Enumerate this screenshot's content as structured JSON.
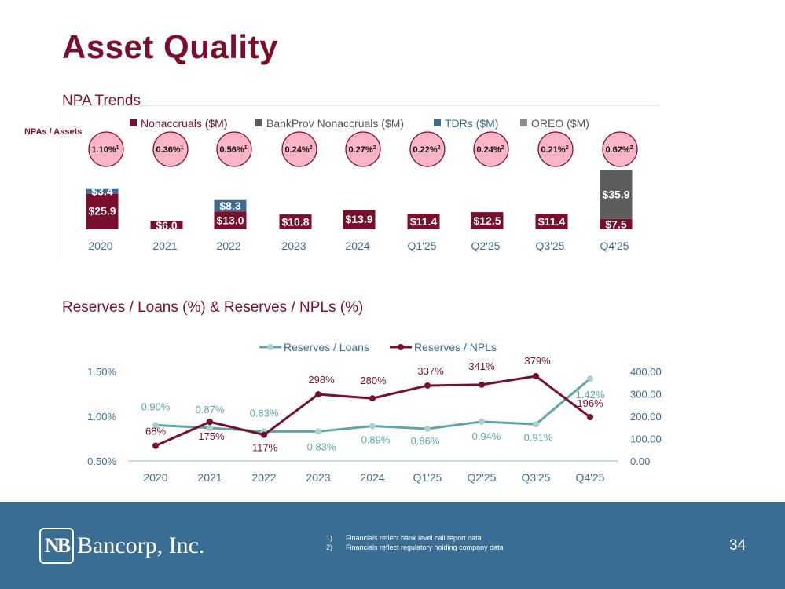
{
  "page": {
    "title": "Asset Quality",
    "page_number": "34"
  },
  "npa": {
    "title": "NPA Trends",
    "row_label": "NPAs / Assets"
  },
  "reserves": {
    "title": "Reserves / Loans (%) & Reserves / NPLs (%)"
  },
  "footer": {
    "logo_mark": "NB",
    "logo_text": "Bancorp, Inc.",
    "footnotes": [
      {
        "num": "1)",
        "text": "Financials reflect bank level call report data"
      },
      {
        "num": "2)",
        "text": "Financials reflect regulatory holding company data"
      }
    ]
  },
  "colors": {
    "maroon": "#7a0f2d",
    "bankprov_gray": "#5d5d5d",
    "tdr_blue": "#3a6d94",
    "oreo_gray": "#8c8c8c",
    "teal": "#5fa6aa",
    "circle_fill": "#f9b4c7",
    "footer_blue": "#3a6d94"
  },
  "chart_data": [
    {
      "type": "bar",
      "stacked": true,
      "title": "NPA Trends",
      "categories": [
        "2020",
        "2021",
        "2022",
        "2023",
        "2024",
        "Q1'25",
        "Q2'25",
        "Q3'25",
        "Q4'25"
      ],
      "series": [
        {
          "name": "Nonaccruals ($M)",
          "values": [
            25.9,
            6.0,
            13.0,
            10.8,
            13.9,
            11.4,
            12.5,
            11.4,
            7.5
          ],
          "labels": [
            "$25.9",
            "$6.0",
            "$13.0",
            "$10.8",
            "$13.9",
            "$11.4",
            "$12.5",
            "$11.4",
            "$7.5"
          ]
        },
        {
          "name": "BankProv Nonaccruals ($M)",
          "values": [
            0,
            0,
            0,
            0,
            0,
            0,
            0,
            0,
            35.9
          ],
          "labels": [
            "",
            "",
            "",
            "",
            "",
            "",
            "",
            "",
            "$35.9"
          ]
        },
        {
          "name": "TDRs ($M)",
          "values": [
            3.4,
            0,
            8.3,
            0,
            0,
            0,
            0,
            0,
            0
          ],
          "labels": [
            "$3.4",
            "",
            "$8.3",
            "",
            "",
            "",
            "",
            "",
            ""
          ]
        },
        {
          "name": "OREO ($M)",
          "values": [
            0,
            0,
            0,
            0,
            0,
            0,
            0,
            0,
            0
          ],
          "labels": [
            "",
            "",
            "",
            "",
            "",
            "",
            "",
            "",
            ""
          ]
        }
      ],
      "npa_to_assets": [
        "1.10%",
        "0.36%",
        "0.56%",
        "0.24%",
        "0.27%",
        "0.22%",
        "0.24%",
        "0.21%",
        "0.62%"
      ],
      "npa_to_assets_footnote": [
        "1",
        "1",
        "1",
        "2",
        "2",
        "2",
        "2",
        "2",
        "2"
      ],
      "legend_position": "top"
    },
    {
      "type": "line",
      "title": "Reserves / Loans (%) & Reserves / NPLs (%)",
      "categories": [
        "2020",
        "2021",
        "2022",
        "2023",
        "2024",
        "Q1'25",
        "Q2'25",
        "Q3'25",
        "Q4'25"
      ],
      "series": [
        {
          "name": "Reserves / Loans",
          "axis": "left",
          "values": [
            0.9,
            0.87,
            0.83,
            0.83,
            0.89,
            0.86,
            0.94,
            0.91,
            1.42
          ],
          "labels": [
            "0.90%",
            "0.87%",
            "0.83%",
            "0.83%",
            "0.89%",
            "0.86%",
            "0.94%",
            "0.91%",
            "1.42%"
          ]
        },
        {
          "name": "Reserves / NPLs",
          "axis": "right",
          "values": [
            68,
            175,
            117,
            298,
            280,
            337,
            341,
            379,
            196
          ],
          "labels": [
            "68%",
            "175%",
            "117%",
            "298%",
            "280%",
            "337%",
            "341%",
            "379%",
            "196%"
          ]
        }
      ],
      "y_left": {
        "ticks": [
          "0.50%",
          "1.00%",
          "1.50%"
        ],
        "range": [
          0.5,
          1.5
        ]
      },
      "y_right": {
        "ticks": [
          "0.00",
          "100.00",
          "200.00",
          "300.00",
          "400.00"
        ],
        "range": [
          0,
          400
        ]
      },
      "legend_position": "top"
    }
  ]
}
